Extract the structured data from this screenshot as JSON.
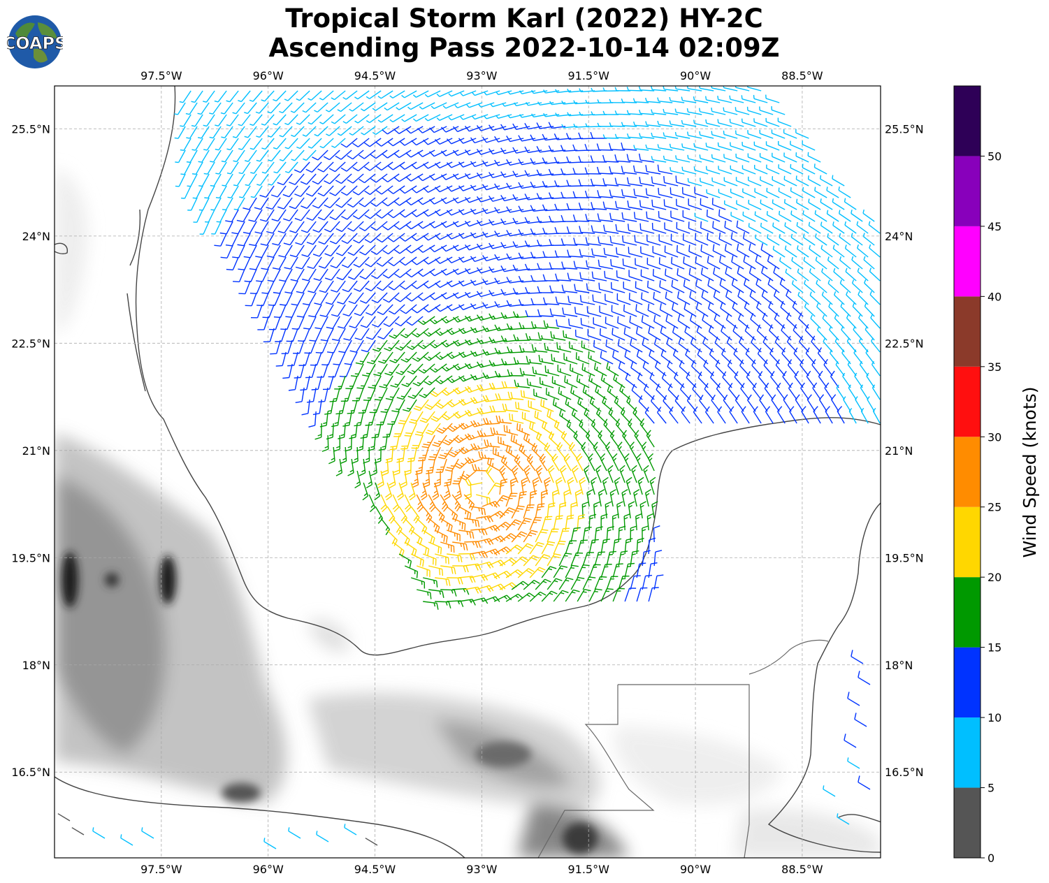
{
  "title": {
    "line1": "Tropical Storm Karl (2022) HY-2C",
    "line2": "Ascending Pass 2022-10-14 02:09Z"
  },
  "logo": {
    "icon": "globe-icon",
    "text": "COAPS"
  },
  "map": {
    "lon_range": [
      -99,
      -87.4
    ],
    "lat_range": [
      15.3,
      26.1
    ],
    "lon_ticks": [
      {
        "value": -97.5,
        "label": "97.5°W"
      },
      {
        "value": -96,
        "label": "96°W"
      },
      {
        "value": -94.5,
        "label": "94.5°W"
      },
      {
        "value": -93,
        "label": "93°W"
      },
      {
        "value": -91.5,
        "label": "91.5°W"
      },
      {
        "value": -90,
        "label": "90°W"
      },
      {
        "value": -88.5,
        "label": "88.5°W"
      }
    ],
    "lat_ticks": [
      {
        "value": 25.5,
        "label": "25.5°N"
      },
      {
        "value": 24,
        "label": "24°N"
      },
      {
        "value": 22.5,
        "label": "22.5°N"
      },
      {
        "value": 21,
        "label": "21°N"
      },
      {
        "value": 19.5,
        "label": "19.5°N"
      },
      {
        "value": 18,
        "label": "18°N"
      },
      {
        "value": 16.5,
        "label": "16.5°N"
      }
    ],
    "grid": true,
    "storm_center": {
      "lon": -93,
      "lat": 20.5
    }
  },
  "colorbar": {
    "label": "Wind Speed (knots)",
    "bins": [
      {
        "min": 0,
        "max": 5,
        "color": "#555555"
      },
      {
        "min": 5,
        "max": 10,
        "color": "#00bfff"
      },
      {
        "min": 10,
        "max": 15,
        "color": "#0033ff"
      },
      {
        "min": 15,
        "max": 20,
        "color": "#009900"
      },
      {
        "min": 20,
        "max": 25,
        "color": "#ffd700"
      },
      {
        "min": 25,
        "max": 30,
        "color": "#ff8c00"
      },
      {
        "min": 30,
        "max": 35,
        "color": "#ff0f0f"
      },
      {
        "min": 35,
        "max": 40,
        "color": "#8b3a2a"
      },
      {
        "min": 40,
        "max": 45,
        "color": "#ff00ff"
      },
      {
        "min": 45,
        "max": 50,
        "color": "#8800bb"
      },
      {
        "min": 50,
        "max": 55,
        "color": "#2e0057"
      }
    ],
    "ticks": [
      {
        "value": 0,
        "label": "0"
      },
      {
        "value": 5,
        "label": "5"
      },
      {
        "value": 10,
        "label": "10"
      },
      {
        "value": 15,
        "label": "15"
      },
      {
        "value": 20,
        "label": "20"
      },
      {
        "value": 25,
        "label": "25"
      },
      {
        "value": 30,
        "label": "30"
      },
      {
        "value": 35,
        "label": "35"
      },
      {
        "value": 40,
        "label": "40"
      },
      {
        "value": 45,
        "label": "45"
      },
      {
        "value": 50,
        "label": "50"
      }
    ]
  }
}
